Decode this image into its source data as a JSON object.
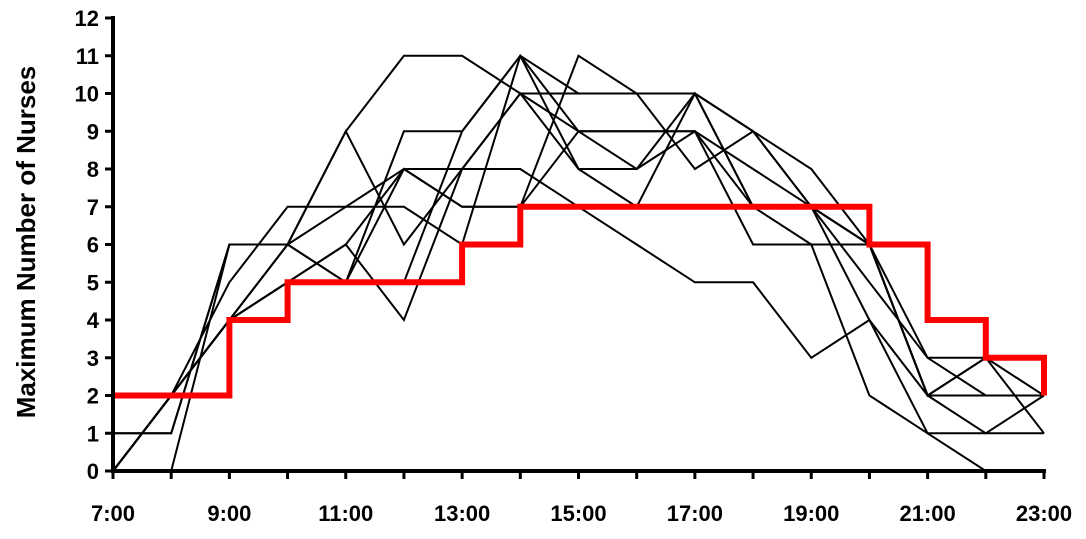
{
  "chart_data": {
    "type": "line",
    "title": "",
    "xlabel": "",
    "ylabel": "Maximum Number of Nurses",
    "x_start_hour": 7,
    "x_end_hour": 23,
    "x_tick_labels": [
      "7:00",
      "9:00",
      "11:00",
      "13:00",
      "15:00",
      "17:00",
      "19:00",
      "21:00",
      "23:00"
    ],
    "y_tick_labels": [
      "0",
      "1",
      "2",
      "3",
      "4",
      "5",
      "6",
      "7",
      "8",
      "9",
      "10",
      "11",
      "12"
    ],
    "ylim": [
      0,
      12
    ],
    "grid": false,
    "legend": false,
    "colors": {
      "series": "#000000",
      "highlight": "#ff0000",
      "axis": "#000000"
    },
    "series": [
      {
        "x": [
          7,
          8,
          9,
          10,
          11,
          12,
          13,
          14,
          15,
          16,
          17,
          18,
          19,
          20,
          21,
          22,
          23
        ],
        "y": [
          1,
          1,
          6,
          6,
          9,
          11,
          11,
          10,
          9,
          9,
          9,
          7,
          6,
          6,
          2,
          2,
          2
        ]
      },
      {
        "x": [
          7,
          8,
          9,
          10,
          11,
          12,
          13,
          14,
          15,
          16,
          17,
          18,
          19,
          20,
          21,
          22,
          23
        ],
        "y": [
          0,
          2,
          5,
          7,
          7,
          7,
          6,
          11,
          10,
          10,
          10,
          9,
          7,
          6,
          3,
          3,
          2
        ]
      },
      {
        "x": [
          7,
          8,
          9,
          10,
          11,
          12,
          13,
          14,
          15,
          16,
          17,
          18,
          19,
          20,
          21,
          22,
          23
        ],
        "y": [
          0,
          2,
          4,
          6,
          5,
          8,
          7,
          7,
          11,
          10,
          8,
          9,
          7,
          5,
          3,
          2,
          2
        ]
      },
      {
        "x": [
          7,
          8,
          9,
          10,
          11,
          12,
          13,
          14,
          15,
          16,
          17,
          18,
          19,
          20,
          21,
          22,
          23
        ],
        "y": [
          1,
          1,
          6,
          6,
          9,
          6,
          8,
          10,
          10,
          10,
          10,
          7,
          7,
          6,
          2,
          2,
          2
        ]
      },
      {
        "x": [
          7,
          8,
          9,
          10,
          11,
          12,
          13,
          14,
          15,
          16,
          17,
          18,
          19,
          20,
          21,
          22,
          23
        ],
        "y": [
          0,
          2,
          4,
          6,
          7,
          8,
          8,
          8,
          7,
          6,
          5,
          5,
          3,
          4,
          2,
          1,
          2
        ]
      },
      {
        "x": [
          7,
          8,
          9,
          10,
          11,
          12,
          13,
          14,
          15,
          16,
          17,
          18,
          19,
          20,
          21,
          22,
          23
        ],
        "y": [
          0,
          0,
          6,
          6,
          5,
          5,
          9,
          11,
          9,
          9,
          9,
          8,
          7,
          6,
          2,
          3,
          1
        ]
      },
      {
        "x": [
          7,
          8,
          9,
          10,
          11,
          12,
          13,
          14,
          15,
          16,
          17,
          18,
          19,
          20,
          21,
          22,
          23
        ],
        "y": [
          0,
          2,
          4,
          5,
          6,
          4,
          8,
          10,
          8,
          8,
          10,
          7,
          7,
          4,
          1,
          1,
          1
        ]
      },
      {
        "x": [
          7,
          8,
          9,
          10,
          11,
          12,
          13,
          14,
          15,
          16,
          17,
          18,
          19,
          20,
          21,
          22,
          23
        ],
        "y": [
          0,
          2,
          4,
          5,
          5,
          9,
          9,
          11,
          8,
          7,
          10,
          9,
          8,
          6,
          2,
          3,
          3
        ]
      },
      {
        "x": [
          7,
          8,
          9,
          10,
          11,
          12,
          13,
          14,
          15,
          16,
          17,
          18,
          19,
          20,
          21,
          22,
          23
        ],
        "y": [
          0,
          2,
          4,
          5,
          6,
          8,
          7,
          7,
          9,
          8,
          9,
          6,
          6,
          2,
          1,
          0,
          0
        ]
      }
    ],
    "step_series": {
      "x": [
        7,
        9,
        10,
        13,
        14,
        20,
        21,
        22,
        23
      ],
      "y": [
        2,
        4,
        5,
        6,
        7,
        6,
        4,
        3,
        2
      ]
    }
  }
}
